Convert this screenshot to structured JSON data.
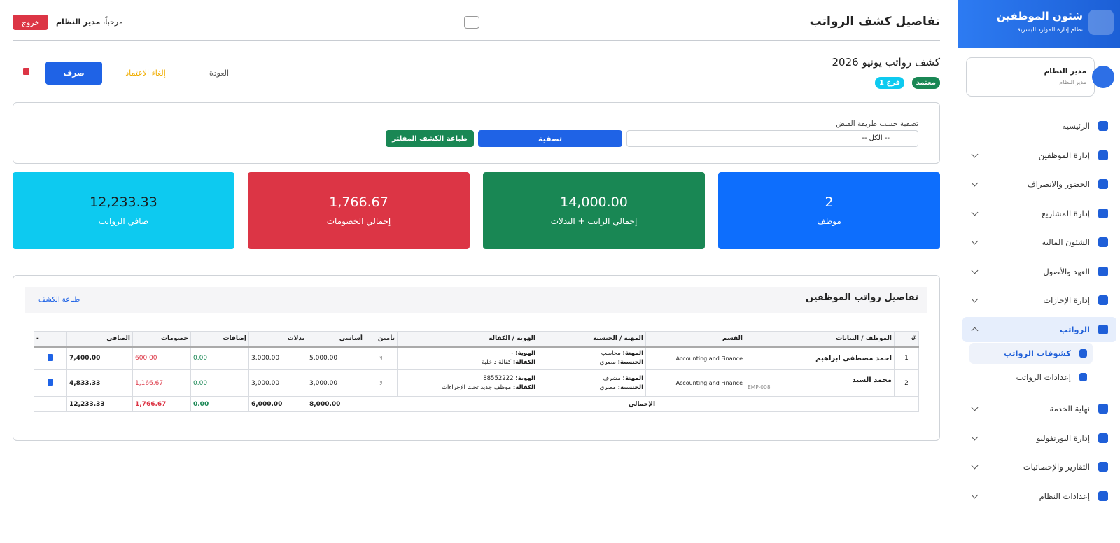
{
  "sidebar": {
    "brand_title": "شئون الموظفين",
    "brand_subtitle": "نظام إدارة الموارد البشرية",
    "user_name": "مدير النظام",
    "user_role": "مدير النظام",
    "menu": [
      {
        "label": "الرئيسية"
      },
      {
        "label": "إدارة الموظفين"
      },
      {
        "label": "الحضور والانصراف"
      },
      {
        "label": "إدارة المشاريع"
      },
      {
        "label": "الشئون المالية"
      },
      {
        "label": "العهد والأصول"
      },
      {
        "label": "إدارة الإجازات"
      },
      {
        "label": "الرواتب",
        "submenu": [
          "كشوفات الرواتب",
          "إعدادات الرواتب"
        ]
      },
      {
        "label": "نهاية الخدمة"
      },
      {
        "label": "إدارة البورتفوليو"
      },
      {
        "label": "التقارير والإحصائيات"
      },
      {
        "label": "إعدادات النظام"
      }
    ]
  },
  "header": {
    "title": "تفاصيل كشف الرواتب",
    "greeting": "مرحباً،",
    "user": "مدير النظام",
    "logout": "خروج"
  },
  "sheet": {
    "title": "كشف رواتب يونيو 2026",
    "status": "معتمد",
    "branch": "فرع 1",
    "back": "العودة",
    "unapprove": "إلغاء الاعتماد",
    "pay": "صرف"
  },
  "filter": {
    "label": "تصفية حسب طريقة القبض",
    "select": "-- الكل --",
    "apply": "تصفية",
    "print": "طباعة الكشف المفلتر"
  },
  "stats": [
    {
      "value": "2",
      "label": "موظف"
    },
    {
      "value": "14,000.00",
      "label": "إجمالي الراتب + البدلات"
    },
    {
      "value": "1,766.67",
      "label": "إجمالي الخصومات"
    },
    {
      "value": "12,233.33",
      "label": "صافي الرواتب"
    }
  ],
  "table": {
    "title": "تفاصيل رواتب الموظفين",
    "print": "طباعة الكشف",
    "headers": [
      "#",
      "الموظف / البيانات",
      "القسم",
      "المهنة / الجنسية",
      "الهوية / الكفالة",
      "تأمين",
      "أساسي",
      "بدلات",
      "إضافات",
      "خصومات",
      "الصافي",
      "-"
    ],
    "labels": {
      "job": "المهنة:",
      "nationality": "الجنسية:",
      "id": "الهوية:",
      "sponsor": "الكفالة:"
    },
    "rows": [
      {
        "no": "1",
        "name": "احمد مصطفى ابراهيم",
        "department": "Accounting and Finance",
        "job": "محاسب",
        "nationality": "مصري",
        "id": "-",
        "sponsor": "كفالة داخلية",
        "insurance": "لا",
        "basic": "5,000.00",
        "allowances": "3,000.00",
        "additions": "0.00",
        "deductions": "600.00",
        "net": "7,400.00"
      },
      {
        "no": "2",
        "name": "محمد السيد",
        "code": "EMP-008",
        "department": "Accounting and Finance",
        "job": "مشرف",
        "nationality": "مصري",
        "id": "88552222",
        "sponsor": "موظف جديد تحت الإجراءات",
        "insurance": "لا",
        "basic": "3,000.00",
        "allowances": "3,000.00",
        "additions": "0.00",
        "deductions": "1,166.67",
        "net": "4,833.33"
      }
    ],
    "totals": {
      "label": "الإجمالي",
      "basic": "8,000.00",
      "allowances": "6,000.00",
      "additions": "0.00",
      "deductions": "1,766.67",
      "net": "12,233.33"
    }
  }
}
